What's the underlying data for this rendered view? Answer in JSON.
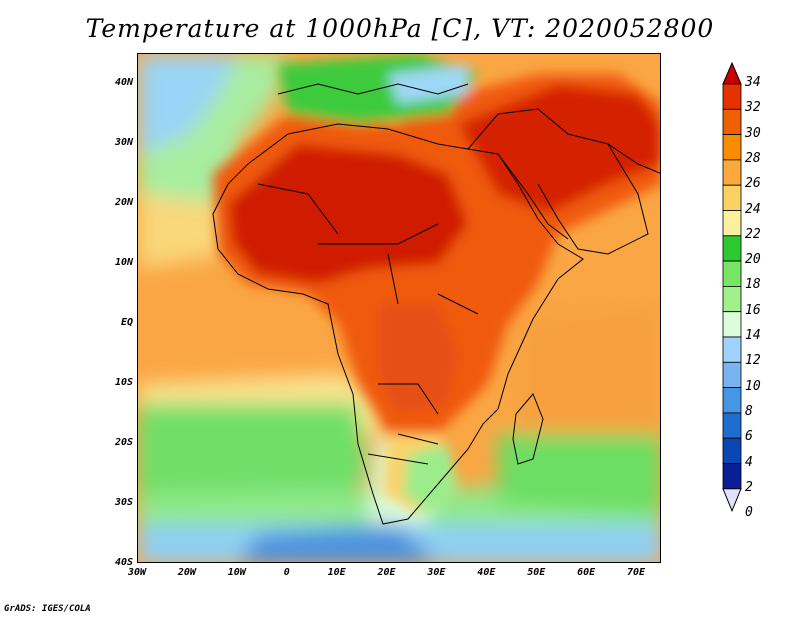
{
  "title": "Temperature at 1000hPa [C], VT: 2020052800",
  "credit": "GrADS: IGES/COLA",
  "map": {
    "lat_labels": [
      "40N",
      "30N",
      "20N",
      "10N",
      "EQ",
      "10S",
      "20S",
      "30S",
      "40S"
    ],
    "lat_values": [
      40,
      30,
      20,
      10,
      0,
      -10,
      -20,
      -30,
      -40
    ],
    "lon_labels": [
      "30W",
      "20W",
      "10W",
      "0",
      "10E",
      "20E",
      "30E",
      "40E",
      "50E",
      "60E",
      "70E"
    ],
    "lon_values": [
      -30,
      -20,
      -10,
      0,
      10,
      20,
      30,
      40,
      50,
      60,
      70
    ],
    "lon_range": [
      -30,
      75
    ],
    "lat_range": [
      -40,
      45
    ]
  },
  "colorbar": {
    "labels": [
      "34",
      "32",
      "30",
      "28",
      "26",
      "24",
      "22",
      "20",
      "18",
      "16",
      "14",
      "12",
      "10",
      "8",
      "6",
      "4",
      "2",
      "0"
    ],
    "colors": [
      "#c80000",
      "#e63200",
      "#f06000",
      "#fa8c00",
      "#faaa3c",
      "#fad264",
      "#faf0a0",
      "#2ec832",
      "#78e664",
      "#a0f08c",
      "#dcfcdc",
      "#a0d2ff",
      "#78b4f0",
      "#4696e6",
      "#1e6ed2",
      "#0a46b4",
      "#0a1e96",
      "#0a0a6e"
    ]
  }
}
